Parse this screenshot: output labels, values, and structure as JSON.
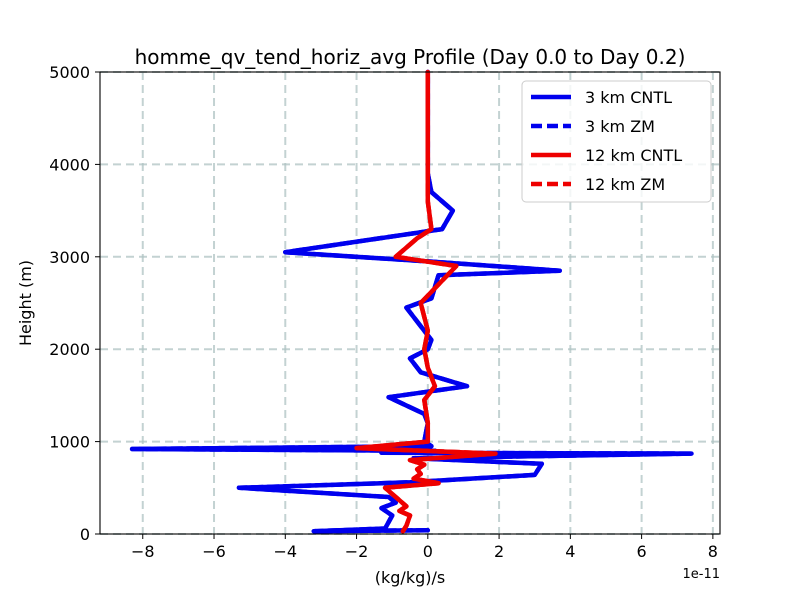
{
  "chart_data": {
    "type": "line",
    "title": "homme_qv_tend_horiz_avg Profile (Day 0.0 to Day 0.2)",
    "xlabel": "(kg/kg)/s",
    "ylabel": "Height (m)",
    "x_offset_label": "1e-11",
    "xlim": [
      -9.2,
      8.2
    ],
    "ylim": [
      0,
      5000
    ],
    "x_ticks": [
      -8,
      -6,
      -4,
      -2,
      0,
      2,
      4,
      6,
      8
    ],
    "x_tick_labels": [
      "−8",
      "−6",
      "−4",
      "−2",
      "0",
      "2",
      "4",
      "6",
      "8"
    ],
    "y_ticks": [
      0,
      1000,
      2000,
      3000,
      4000,
      5000
    ],
    "y_tick_labels": [
      "0",
      "1000",
      "2000",
      "3000",
      "4000",
      "5000"
    ],
    "grid": true,
    "legend_position": "top-right",
    "series": [
      {
        "name": "3 km CNTL",
        "color": "#0000ee",
        "dash": "solid",
        "x": [
          0.0,
          -3.2,
          -1.2,
          -1.0,
          -1.3,
          -0.9,
          -1.1,
          -5.3,
          -0.5,
          3.0,
          3.2,
          -0.4,
          7.4,
          -1.3,
          0.2,
          -8.3,
          0.1,
          -0.1,
          0.0,
          -0.1,
          -1.1,
          1.1,
          -0.2,
          -0.5,
          0.0,
          0.1,
          -0.6,
          0.1,
          0.3,
          3.7,
          0.0,
          -4.0,
          0.4,
          0.7,
          0.1,
          0.0,
          0.0,
          0.0,
          0.0
        ],
        "y": [
          40,
          30,
          60,
          200,
          280,
          340,
          400,
          500,
          560,
          640,
          760,
          820,
          870,
          880,
          900,
          920,
          950,
          1000,
          1200,
          1300,
          1480,
          1600,
          1750,
          1900,
          2000,
          2100,
          2450,
          2550,
          2800,
          2850,
          2950,
          3050,
          3300,
          3500,
          3700,
          3900,
          4200,
          4600,
          5000
        ]
      },
      {
        "name": "3 km ZM",
        "color": "#0000ee",
        "dash": "dashed",
        "x": [
          0.0,
          -3.2,
          -1.2,
          -1.0,
          -1.3,
          -0.9,
          -1.1,
          -5.3,
          -0.5,
          3.0,
          3.2,
          -0.4,
          7.4,
          -1.3,
          0.2,
          -8.3,
          0.1,
          -0.1,
          0.0,
          -0.1,
          -1.1,
          1.1,
          -0.2,
          -0.5,
          0.0,
          0.1,
          -0.6,
          0.1,
          0.3,
          3.7,
          0.0,
          -4.0,
          0.4,
          0.7,
          0.1,
          0.0,
          0.0,
          0.0,
          0.0
        ],
        "y": [
          40,
          30,
          60,
          200,
          280,
          340,
          400,
          500,
          560,
          640,
          760,
          820,
          870,
          880,
          900,
          920,
          950,
          1000,
          1200,
          1300,
          1480,
          1600,
          1750,
          1900,
          2000,
          2100,
          2450,
          2550,
          2800,
          2850,
          2950,
          3050,
          3300,
          3500,
          3700,
          3900,
          4200,
          4600,
          5000
        ]
      },
      {
        "name": "12 km CNTL",
        "color": "#ee0000",
        "dash": "solid",
        "x": [
          -0.7,
          -0.6,
          -0.5,
          -0.8,
          -0.6,
          -1.2,
          0.3,
          -0.4,
          -0.2,
          -0.3,
          -0.1,
          -0.5,
          1.9,
          -2.0,
          0.0,
          0.0,
          -0.1,
          0.2,
          0.0,
          -0.1,
          0.0,
          -0.2,
          0.8,
          -0.9,
          -0.3,
          0.1,
          0.0,
          0.0,
          0.0,
          0.0,
          0.0
        ],
        "y": [
          30,
          90,
          200,
          250,
          300,
          500,
          550,
          600,
          650,
          700,
          750,
          800,
          870,
          930,
          1000,
          1200,
          1450,
          1600,
          1800,
          2000,
          2200,
          2500,
          2900,
          3000,
          3200,
          3300,
          3600,
          3800,
          4200,
          4600,
          5000
        ]
      },
      {
        "name": "12 km ZM",
        "color": "#ee0000",
        "dash": "dashed",
        "x": [
          -0.7,
          -0.6,
          -0.5,
          -0.8,
          -0.6,
          -1.2,
          0.3,
          -0.4,
          -0.2,
          -0.3,
          -0.1,
          -0.5,
          1.9,
          -2.0,
          0.0,
          0.0,
          -0.1,
          0.2,
          0.0,
          -0.1,
          0.0,
          -0.2,
          0.8,
          -0.9,
          -0.3,
          0.1,
          0.0,
          0.0,
          0.0,
          0.0,
          0.0
        ],
        "y": [
          30,
          90,
          200,
          250,
          300,
          500,
          550,
          600,
          650,
          700,
          750,
          800,
          870,
          930,
          1000,
          1200,
          1450,
          1600,
          1800,
          2000,
          2200,
          2500,
          2900,
          3000,
          3200,
          3300,
          3600,
          3800,
          4200,
          4600,
          5000
        ]
      }
    ]
  }
}
